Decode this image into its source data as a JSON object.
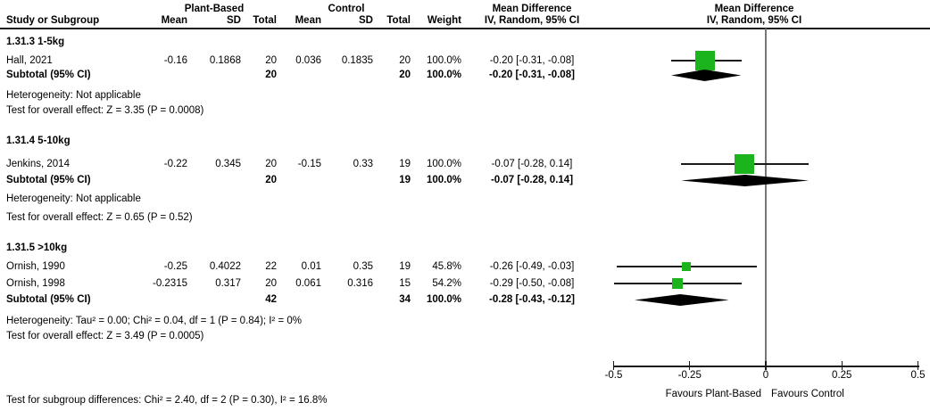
{
  "header": {
    "group1": "Plant-Based",
    "group2": "Control",
    "col_study": "Study or Subgroup",
    "col_mean": "Mean",
    "col_sd": "SD",
    "col_total": "Total",
    "col_weight": "Weight",
    "col_md": "Mean Difference",
    "col_method": "IV, Random, 95% CI"
  },
  "chart_data": {
    "type": "forest",
    "effect_measure": "Mean Difference",
    "method": "IV, Random, 95% CI",
    "axis": {
      "min": -0.5,
      "max": 0.5,
      "ticks": [
        -0.5,
        -0.25,
        0,
        0.25,
        0.5
      ],
      "tick_labels": [
        "-0.5",
        "-0.25",
        "0",
        "0.25",
        "0.5"
      ],
      "favours_left": "Favours Plant-Based",
      "favours_right": "Favours Control"
    },
    "colors": {
      "square": "#1cb41c",
      "diamond": "#000000",
      "ci_line": "#1a1a1a",
      "zero_line": "#777777"
    },
    "sections": [
      {
        "label": "1.31.3 1-5kg",
        "studies": [
          {
            "name": "Hall, 2021",
            "exp_mean": "-0.16",
            "exp_sd": "0.1868",
            "exp_total": "20",
            "ctl_mean": "0.036",
            "ctl_sd": "0.1835",
            "ctl_total": "20",
            "weight": "100.0%",
            "weight_pct": 100.0,
            "ci_text": "-0.20 [-0.31, -0.08]",
            "est": -0.2,
            "lo": -0.31,
            "hi": -0.08
          }
        ],
        "subtotal": {
          "name": "Subtotal (95% CI)",
          "exp_total": "20",
          "ctl_total": "20",
          "weight": "100.0%",
          "ci_text": "-0.20 [-0.31, -0.08]",
          "est": -0.2,
          "lo": -0.31,
          "hi": -0.08
        },
        "heterogeneity": "Heterogeneity: Not applicable",
        "overall_effect": "Test for overall effect: Z = 3.35 (P = 0.0008)"
      },
      {
        "label": "1.31.4 5-10kg",
        "studies": [
          {
            "name": "Jenkins, 2014",
            "exp_mean": "-0.22",
            "exp_sd": "0.345",
            "exp_total": "20",
            "ctl_mean": "-0.15",
            "ctl_sd": "0.33",
            "ctl_total": "19",
            "weight": "100.0%",
            "weight_pct": 100.0,
            "ci_text": "-0.07 [-0.28, 0.14]",
            "est": -0.07,
            "lo": -0.28,
            "hi": 0.14
          }
        ],
        "subtotal": {
          "name": "Subtotal (95% CI)",
          "exp_total": "20",
          "ctl_total": "19",
          "weight": "100.0%",
          "ci_text": "-0.07 [-0.28, 0.14]",
          "est": -0.07,
          "lo": -0.28,
          "hi": 0.14
        },
        "heterogeneity": "Heterogeneity: Not applicable",
        "overall_effect": "Test for overall effect: Z = 0.65 (P = 0.52)"
      },
      {
        "label": "1.31.5 >10kg",
        "studies": [
          {
            "name": "Ornish, 1990",
            "exp_mean": "-0.25",
            "exp_sd": "0.4022",
            "exp_total": "22",
            "ctl_mean": "0.01",
            "ctl_sd": "0.35",
            "ctl_total": "19",
            "weight": "45.8%",
            "weight_pct": 45.8,
            "ci_text": "-0.26 [-0.49, -0.03]",
            "est": -0.26,
            "lo": -0.49,
            "hi": -0.03
          },
          {
            "name": "Ornish, 1998",
            "exp_mean": "-0.2315",
            "exp_sd": "0.317",
            "exp_total": "20",
            "ctl_mean": "0.061",
            "ctl_sd": "0.316",
            "ctl_total": "15",
            "weight": "54.2%",
            "weight_pct": 54.2,
            "ci_text": "-0.29 [-0.50, -0.08]",
            "est": -0.29,
            "lo": -0.5,
            "hi": -0.08
          }
        ],
        "subtotal": {
          "name": "Subtotal (95% CI)",
          "exp_total": "42",
          "ctl_total": "34",
          "weight": "100.0%",
          "ci_text": "-0.28 [-0.43, -0.12]",
          "est": -0.28,
          "lo": -0.43,
          "hi": -0.12
        },
        "heterogeneity": "Heterogeneity: Tau² = 0.00; Chi² = 0.04, df = 1 (P = 0.84); I² = 0%",
        "overall_effect": "Test for overall effect: Z = 3.49 (P = 0.0005)"
      }
    ],
    "footer": "Test for subgroup differences: Chi² = 2.40, df = 2 (P = 0.30), I² = 16.8%"
  }
}
